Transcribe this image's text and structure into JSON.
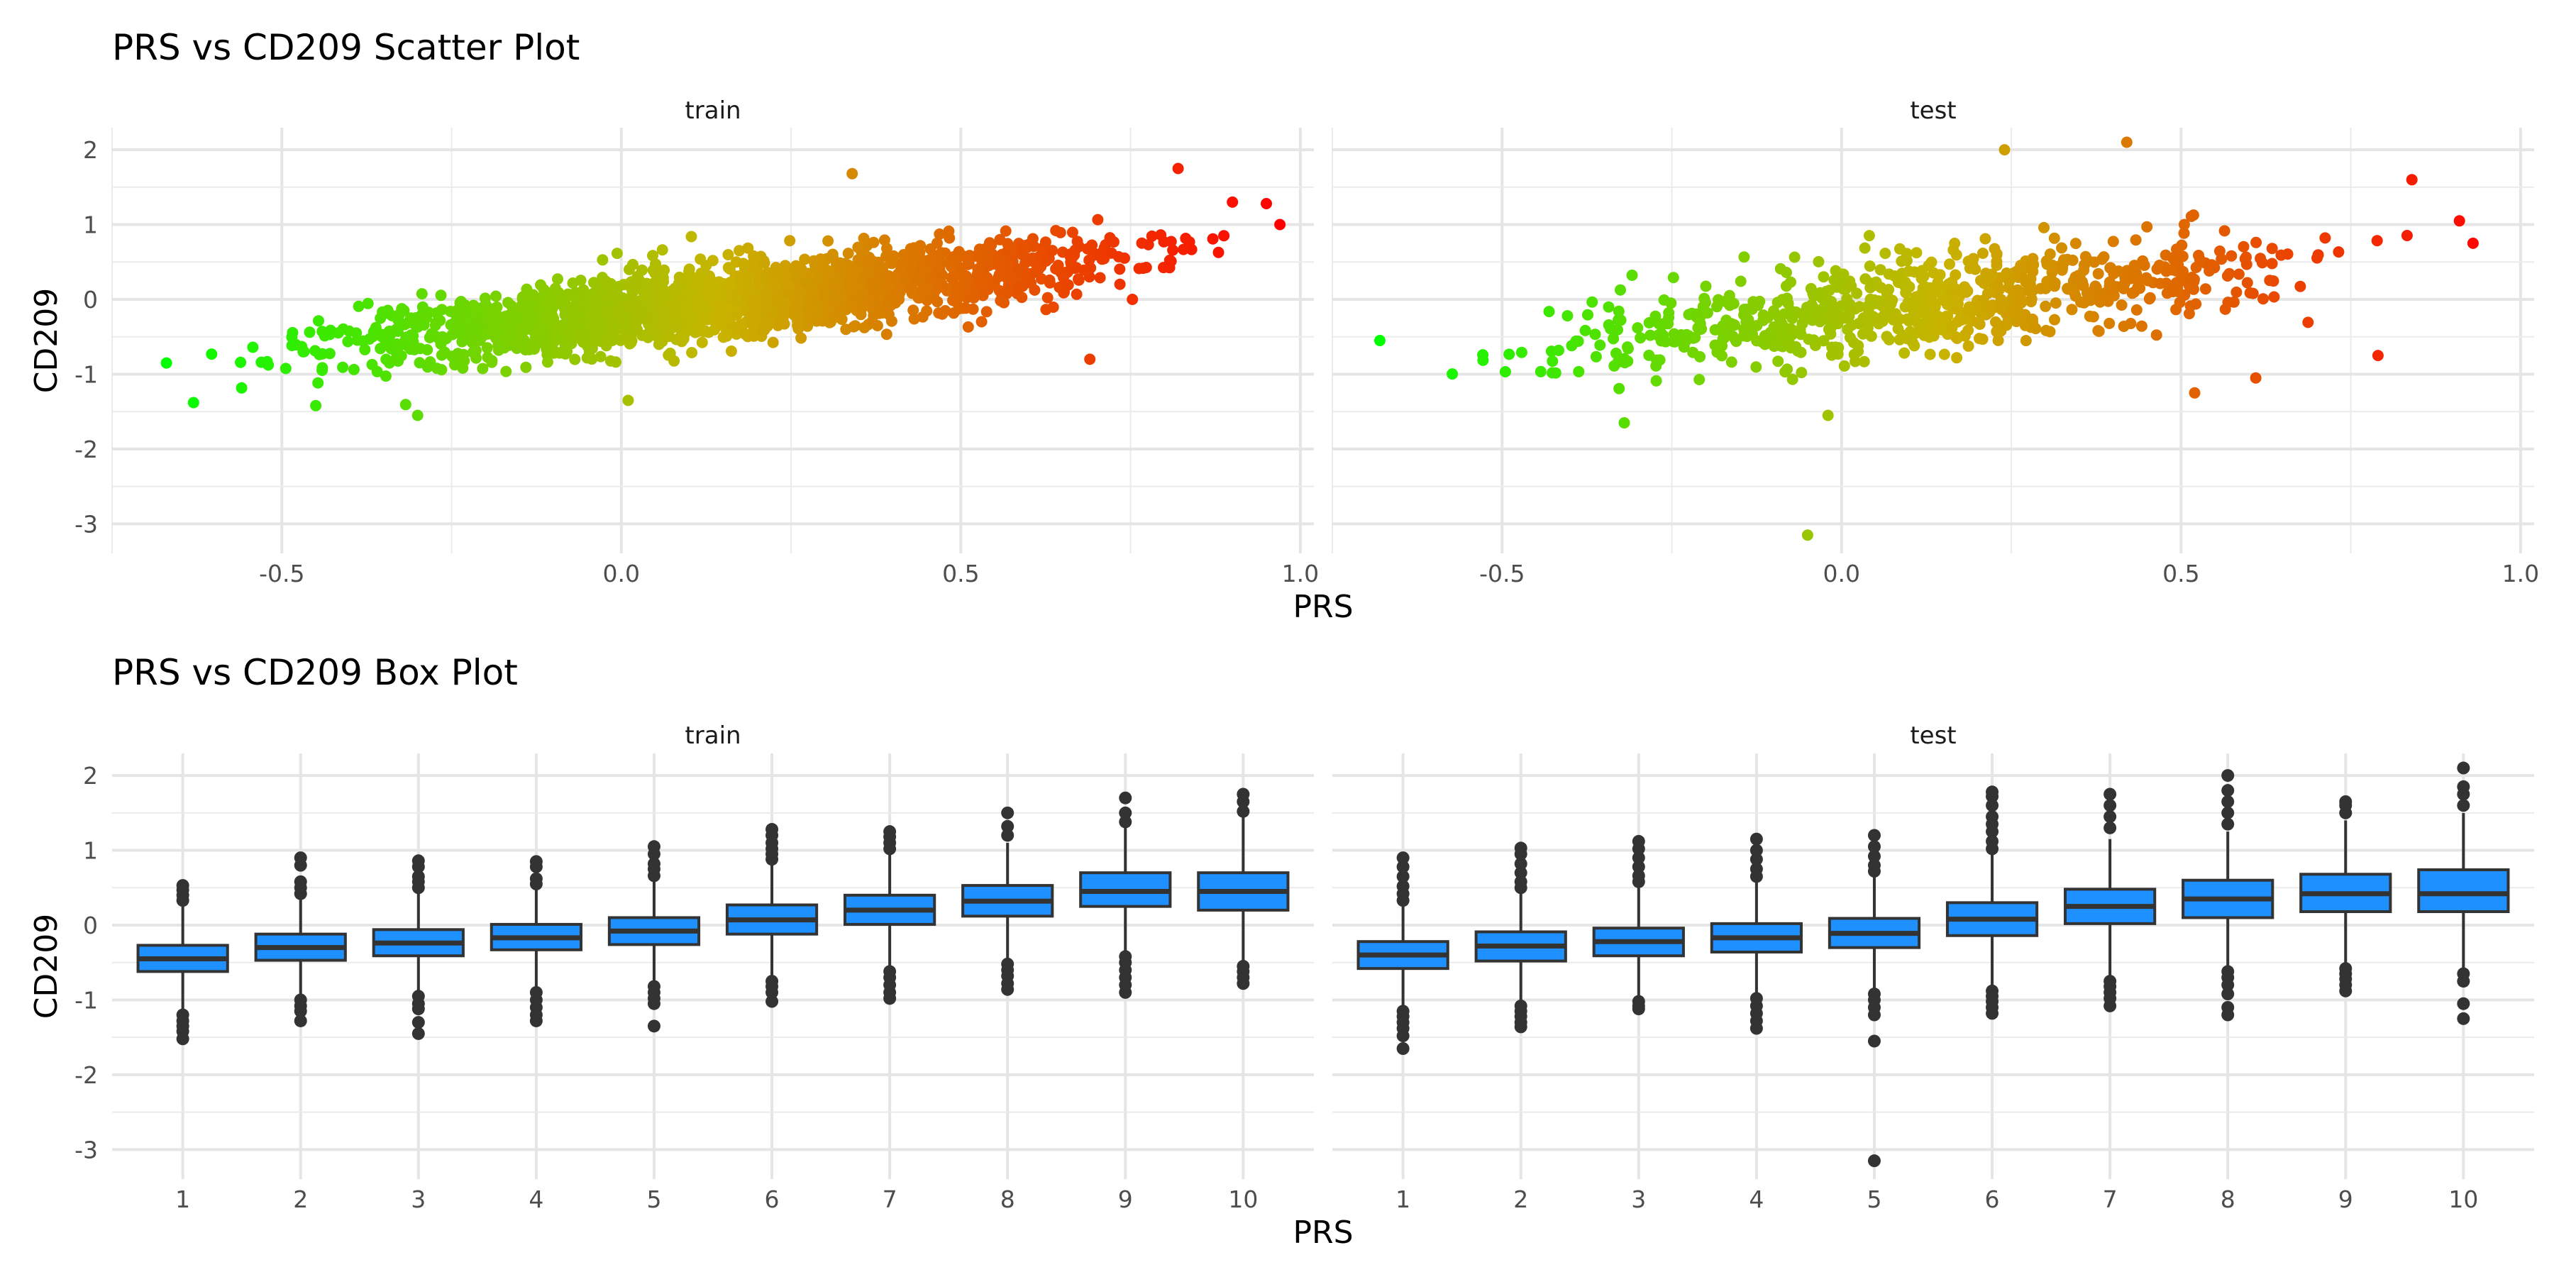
{
  "chart_data": [
    {
      "type": "scatter",
      "title": "PRS vs CD209 Scatter Plot",
      "xlabel": "PRS",
      "ylabel": "CD209",
      "panels": [
        "train",
        "test"
      ],
      "xlim": [
        -0.75,
        1.02
      ],
      "ylim": [
        -3.3,
        2.2
      ],
      "x_ticks": [
        "-0.5",
        "0.0",
        "0.5",
        "1.0"
      ],
      "y_ticks": [
        "2",
        "1",
        "0",
        "-1",
        "-2",
        "-3"
      ],
      "grid": true,
      "color_scale": {
        "low": "#00ff00",
        "mid": "#c8b400",
        "high": "#ff0000"
      },
      "series": [
        {
          "panel": "train",
          "trend": {
            "slope": 1.02,
            "intercept": -0.18,
            "noise_sd": 0.24
          },
          "x_range": [
            -0.67,
            0.97
          ],
          "approx_points": 9000,
          "notable_points": [
            {
              "x": -0.67,
              "y": -0.85
            },
            {
              "x": -0.63,
              "y": -1.38
            },
            {
              "x": -0.45,
              "y": -1.42
            },
            {
              "x": -0.3,
              "y": -1.55
            },
            {
              "x": 0.01,
              "y": -1.35
            },
            {
              "x": 0.34,
              "y": 1.68
            },
            {
              "x": 0.82,
              "y": 1.75
            },
            {
              "x": 0.9,
              "y": 1.3
            },
            {
              "x": 0.95,
              "y": 1.28
            },
            {
              "x": 0.97,
              "y": 1.0
            },
            {
              "x": 0.69,
              "y": -0.8
            }
          ]
        },
        {
          "panel": "test",
          "trend": {
            "slope": 1.02,
            "intercept": -0.18,
            "noise_sd": 0.3
          },
          "x_range": [
            -0.68,
            0.93
          ],
          "approx_points": 3500,
          "notable_points": [
            {
              "x": -0.68,
              "y": -0.55
            },
            {
              "x": -0.32,
              "y": -1.65
            },
            {
              "x": -0.05,
              "y": -3.15
            },
            {
              "x": -0.02,
              "y": -1.55
            },
            {
              "x": 0.24,
              "y": 2.0
            },
            {
              "x": 0.42,
              "y": 2.1
            },
            {
              "x": 0.52,
              "y": -1.25
            },
            {
              "x": 0.61,
              "y": -1.05
            },
            {
              "x": 0.79,
              "y": -0.75
            },
            {
              "x": 0.93,
              "y": 0.75
            },
            {
              "x": 0.91,
              "y": 1.05
            },
            {
              "x": 0.84,
              "y": 1.6
            }
          ]
        }
      ]
    },
    {
      "type": "box",
      "title": "PRS vs CD209 Box Plot",
      "xlabel": "PRS",
      "ylabel": "CD209",
      "panels": [
        "train",
        "test"
      ],
      "categories": [
        "1",
        "2",
        "3",
        "4",
        "5",
        "6",
        "7",
        "8",
        "9",
        "10"
      ],
      "ylim": [
        -3.3,
        2.2
      ],
      "y_ticks": [
        "2",
        "1",
        "0",
        "-1",
        "-2",
        "-3"
      ],
      "grid": true,
      "fill_color": "#1e90ff",
      "series": [
        {
          "panel": "train",
          "boxes": [
            {
              "q1": -0.62,
              "median": -0.45,
              "q3": -0.27,
              "whisker_low": -1.12,
              "whisker_high": 0.25,
              "outliers": [
                -1.2,
                -1.28,
                -1.35,
                -1.42,
                -1.52,
                0.33,
                0.4,
                0.47,
                0.53
              ]
            },
            {
              "q1": -0.47,
              "median": -0.3,
              "q3": -0.12,
              "whisker_low": -0.95,
              "whisker_high": 0.38,
              "outliers": [
                -1.0,
                -1.08,
                -1.15,
                -1.28,
                0.42,
                0.5,
                0.58,
                0.8,
                0.9
              ]
            },
            {
              "q1": -0.41,
              "median": -0.24,
              "q3": -0.06,
              "whisker_low": -0.88,
              "whisker_high": 0.44,
              "outliers": [
                -0.95,
                -1.05,
                -1.12,
                -1.3,
                -1.45,
                0.5,
                0.58,
                0.65,
                0.78,
                0.86
              ]
            },
            {
              "q1": -0.33,
              "median": -0.17,
              "q3": 0.01,
              "whisker_low": -0.82,
              "whisker_high": 0.5,
              "outliers": [
                -0.9,
                -1.0,
                -1.1,
                -1.2,
                -1.28,
                0.55,
                0.62,
                0.78,
                0.85
              ]
            },
            {
              "q1": -0.26,
              "median": -0.08,
              "q3": 0.1,
              "whisker_low": -0.78,
              "whisker_high": 0.6,
              "outliers": [
                -0.82,
                -0.9,
                -0.98,
                -1.05,
                -1.35,
                0.66,
                0.75,
                0.82,
                0.95,
                1.05
              ]
            },
            {
              "q1": -0.12,
              "median": 0.07,
              "q3": 0.27,
              "whisker_low": -0.68,
              "whisker_high": 0.82,
              "outliers": [
                -0.75,
                -0.82,
                -0.9,
                -1.02,
                0.88,
                0.95,
                1.02,
                1.1,
                1.2,
                1.28
              ]
            },
            {
              "q1": 0.01,
              "median": 0.2,
              "q3": 0.4,
              "whisker_low": -0.55,
              "whisker_high": 0.95,
              "outliers": [
                -0.62,
                -0.7,
                -0.8,
                -0.9,
                -0.98,
                1.02,
                1.1,
                1.18,
                1.25
              ]
            },
            {
              "q1": 0.12,
              "median": 0.32,
              "q3": 0.53,
              "whisker_low": -0.46,
              "whisker_high": 1.1,
              "outliers": [
                -0.52,
                -0.6,
                -0.68,
                -0.78,
                -0.86,
                1.2,
                1.32,
                1.5
              ]
            },
            {
              "q1": 0.25,
              "median": 0.45,
              "q3": 0.7,
              "whisker_low": -0.38,
              "whisker_high": 1.3,
              "outliers": [
                -0.42,
                -0.5,
                -0.6,
                -0.7,
                -0.8,
                -0.9,
                1.38,
                1.5,
                1.7
              ]
            },
            {
              "q1": 0.2,
              "median": 0.45,
              "q3": 0.7,
              "whisker_low": -0.48,
              "whisker_high": 1.45,
              "outliers": [
                -0.55,
                -0.62,
                -0.7,
                -0.78,
                1.52,
                1.65,
                1.75
              ]
            }
          ]
        },
        {
          "panel": "test",
          "boxes": [
            {
              "q1": -0.58,
              "median": -0.4,
              "q3": -0.22,
              "whisker_low": -1.08,
              "whisker_high": 0.28,
              "outliers": [
                -1.15,
                -1.22,
                -1.3,
                -1.38,
                -1.48,
                -1.65,
                0.33,
                0.42,
                0.52,
                0.65,
                0.78,
                0.9
              ]
            },
            {
              "q1": -0.48,
              "median": -0.28,
              "q3": -0.09,
              "whisker_low": -1.0,
              "whisker_high": 0.45,
              "outliers": [
                -1.08,
                -1.15,
                -1.22,
                -1.3,
                -1.36,
                0.5,
                0.58,
                0.7,
                0.82,
                0.95,
                1.03
              ]
            },
            {
              "q1": -0.41,
              "median": -0.22,
              "q3": -0.04,
              "whisker_low": -0.95,
              "whisker_high": 0.52,
              "outliers": [
                -1.02,
                -1.08,
                -1.12,
                0.58,
                0.66,
                0.78,
                0.9,
                1.02,
                1.12
              ]
            },
            {
              "q1": -0.36,
              "median": -0.17,
              "q3": 0.02,
              "whisker_low": -0.9,
              "whisker_high": 0.58,
              "outliers": [
                -0.98,
                -1.08,
                -1.18,
                -1.28,
                -1.38,
                0.65,
                0.75,
                0.88,
                1.0,
                1.15
              ]
            },
            {
              "q1": -0.3,
              "median": -0.11,
              "q3": 0.09,
              "whisker_low": -0.86,
              "whisker_high": 0.66,
              "outliers": [
                -0.92,
                -1.0,
                -1.1,
                -1.2,
                -1.55,
                -3.15,
                0.72,
                0.8,
                0.92,
                1.05,
                1.2
              ]
            },
            {
              "q1": -0.14,
              "median": 0.08,
              "q3": 0.3,
              "whisker_low": -0.8,
              "whisker_high": 0.95,
              "outliers": [
                -0.88,
                -0.95,
                -1.02,
                -1.1,
                -1.18,
                1.02,
                1.12,
                1.25,
                1.35,
                1.45,
                1.6,
                1.72,
                1.78
              ]
            },
            {
              "q1": 0.02,
              "median": 0.25,
              "q3": 0.48,
              "whisker_low": -0.68,
              "whisker_high": 1.15,
              "outliers": [
                -0.75,
                -0.82,
                -0.9,
                -0.98,
                -1.08,
                1.3,
                1.45,
                1.6,
                1.75
              ]
            },
            {
              "q1": 0.1,
              "median": 0.35,
              "q3": 0.6,
              "whisker_low": -0.55,
              "whisker_high": 1.25,
              "outliers": [
                -0.62,
                -0.7,
                -0.8,
                -0.92,
                -1.1,
                -1.2,
                1.35,
                1.5,
                1.65,
                1.8,
                2.0
              ]
            },
            {
              "q1": 0.18,
              "median": 0.42,
              "q3": 0.68,
              "whisker_low": -0.5,
              "whisker_high": 1.4,
              "outliers": [
                -0.58,
                -0.65,
                -0.72,
                -0.8,
                -0.88,
                1.5,
                1.6,
                1.65
              ]
            },
            {
              "q1": 0.18,
              "median": 0.42,
              "q3": 0.74,
              "whisker_low": -0.58,
              "whisker_high": 1.5,
              "outliers": [
                -0.65,
                -0.75,
                -1.05,
                -1.25,
                1.6,
                1.75,
                1.85,
                2.1
              ]
            }
          ]
        }
      ]
    }
  ]
}
